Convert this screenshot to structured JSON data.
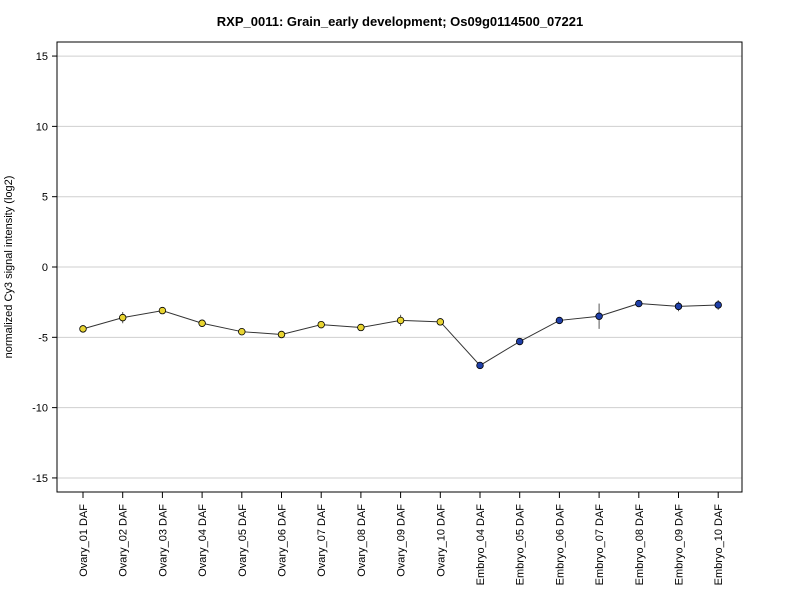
{
  "chart_data": {
    "type": "line",
    "title": "RXP_0011: Grain_early development; Os09g0114500_07221",
    "xlabel": "",
    "ylabel": "normalized Cy3 signal intensity (log2)",
    "ylim": [
      -16,
      16
    ],
    "yticks": [
      -15,
      -10,
      -5,
      0,
      5,
      10,
      15
    ],
    "grid": true,
    "categories": [
      "Ovary_01 DAF",
      "Ovary_02 DAF",
      "Ovary_03 DAF",
      "Ovary_04 DAF",
      "Ovary_05 DAF",
      "Ovary_06 DAF",
      "Ovary_07 DAF",
      "Ovary_08 DAF",
      "Ovary_09 DAF",
      "Ovary_10 DAF",
      "Embryo_04 DAF",
      "Embryo_05 DAF",
      "Embryo_06 DAF",
      "Embryo_07 DAF",
      "Embryo_08 DAF",
      "Embryo_09 DAF",
      "Embryo_10 DAF"
    ],
    "values": [
      -4.4,
      -3.6,
      -3.1,
      -4.0,
      -4.6,
      -4.8,
      -4.1,
      -4.3,
      -3.8,
      -3.9,
      -7.0,
      -5.3,
      -3.8,
      -3.5,
      -2.6,
      -2.8,
      -2.7
    ],
    "error": [
      0.2,
      0.4,
      0.2,
      0.2,
      0.2,
      0.15,
      0.15,
      0.2,
      0.4,
      0.2,
      0.1,
      0.15,
      0.2,
      0.9,
      0.15,
      0.35,
      0.35
    ],
    "point_colors": [
      "#e8d431",
      "#e8d431",
      "#e8d431",
      "#e8d431",
      "#e8d431",
      "#e8d431",
      "#e8d431",
      "#e8d431",
      "#e8d431",
      "#e8d431",
      "#1f3fa8",
      "#1f3fa8",
      "#1f3fa8",
      "#1f3fa8",
      "#1f3fa8",
      "#1f3fa8",
      "#1f3fa8"
    ],
    "line_color": "#333333"
  }
}
